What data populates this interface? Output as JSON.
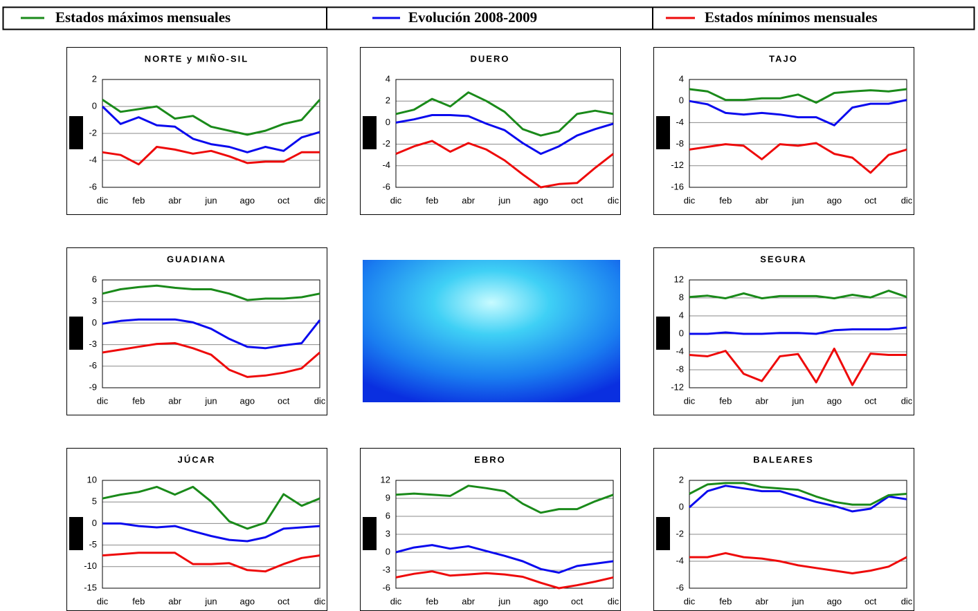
{
  "legend": [
    {
      "name": "Estados máximos mensuales",
      "color": "#1a8a1a"
    },
    {
      "name": "Evolución 2008-2009",
      "color": "#0a0aee"
    },
    {
      "name": "Estados mínimos mensuales",
      "color": "#ee0a0a"
    }
  ],
  "chart_data": [
    {
      "type": "line",
      "title": "NORTE y MIÑO-SIL",
      "categories": [
        "dic",
        null,
        "feb",
        null,
        "abr",
        null,
        "jun",
        null,
        "ago",
        null,
        "oct",
        null,
        "dic"
      ],
      "ylim": [
        -6,
        2
      ],
      "yticks": [
        -6,
        -4,
        -2,
        0,
        2
      ],
      "grid": true,
      "series": [
        {
          "values": [
            0.5,
            -0.4,
            -0.2,
            0,
            -0.9,
            -0.7,
            -1.5,
            -1.8,
            -2.1,
            -1.8,
            -1.3,
            -1.0,
            0.5
          ]
        },
        {
          "values": [
            0,
            -1.3,
            -0.8,
            -1.4,
            -1.5,
            -2.4,
            -2.8,
            -3.0,
            -3.4,
            -3.0,
            -3.3,
            -2.3,
            -1.9
          ]
        },
        {
          "values": [
            -3.4,
            -3.6,
            -4.3,
            -3.0,
            -3.2,
            -3.5,
            -3.3,
            -3.7,
            -4.2,
            -4.1,
            -4.1,
            -3.4,
            -3.4
          ]
        }
      ]
    },
    {
      "type": "line",
      "title": "DUERO",
      "categories": [
        "dic",
        null,
        "feb",
        null,
        "abr",
        null,
        "jun",
        null,
        "ago",
        null,
        "oct",
        null,
        "dic"
      ],
      "ylim": [
        -6,
        4
      ],
      "yticks": [
        -6,
        -4,
        -2,
        0,
        2,
        4
      ],
      "grid": true,
      "series": [
        {
          "values": [
            0.8,
            1.2,
            2.2,
            1.5,
            2.8,
            2.0,
            1.0,
            -0.6,
            -1.2,
            -0.8,
            0.8,
            1.1,
            0.8
          ]
        },
        {
          "values": [
            0,
            0.3,
            0.7,
            0.7,
            0.6,
            -0.1,
            -0.7,
            -1.9,
            -2.9,
            -2.2,
            -1.2,
            -0.6,
            -0.1
          ]
        },
        {
          "values": [
            -2.9,
            -2.2,
            -1.7,
            -2.7,
            -1.9,
            -2.5,
            -3.5,
            -4.8,
            -6.0,
            -5.7,
            -5.6,
            -4.2,
            -2.9
          ]
        }
      ]
    },
    {
      "type": "line",
      "title": "TAJO",
      "categories": [
        "dic",
        null,
        "feb",
        null,
        "abr",
        null,
        "jun",
        null,
        "ago",
        null,
        "oct",
        null,
        "dic"
      ],
      "ylim": [
        -16,
        4
      ],
      "yticks": [
        -16,
        -12,
        -8,
        -4,
        0,
        4
      ],
      "grid": true,
      "series": [
        {
          "values": [
            2.2,
            1.8,
            0.2,
            0.2,
            0.5,
            0.5,
            1.2,
            -0.3,
            1.5,
            1.8,
            2.0,
            1.8,
            2.2
          ]
        },
        {
          "values": [
            0,
            -0.6,
            -2.2,
            -2.5,
            -2.2,
            -2.5,
            -3.0,
            -3.0,
            -4.5,
            -1.2,
            -0.5,
            -0.5,
            0.2
          ]
        },
        {
          "values": [
            -9,
            -8.5,
            -8,
            -8.3,
            -10.8,
            -8,
            -8.3,
            -7.8,
            -9.8,
            -10.5,
            -13.3,
            -10,
            -9
          ]
        }
      ]
    },
    {
      "type": "line",
      "title": "GUADIANA",
      "categories": [
        "dic",
        null,
        "feb",
        null,
        "abr",
        null,
        "jun",
        null,
        "ago",
        null,
        "oct",
        null,
        "dic"
      ],
      "ylim": [
        -9,
        6
      ],
      "yticks": [
        -9,
        -6,
        -3,
        0,
        3,
        6
      ],
      "grid": true,
      "series": [
        {
          "values": [
            4.1,
            4.7,
            5.0,
            5.2,
            4.9,
            4.7,
            4.7,
            4.1,
            3.2,
            3.4,
            3.4,
            3.6,
            4.1
          ]
        },
        {
          "values": [
            -0.1,
            0.3,
            0.5,
            0.5,
            0.5,
            0.1,
            -0.8,
            -2.2,
            -3.3,
            -3.5,
            -3.1,
            -2.8,
            0.4
          ]
        },
        {
          "values": [
            -4.1,
            -3.7,
            -3.3,
            -2.9,
            -2.8,
            -3.5,
            -4.4,
            -6.5,
            -7.5,
            -7.3,
            -6.9,
            -6.3,
            -4.1
          ]
        }
      ]
    },
    {
      "type": "line",
      "title": "SEGURA",
      "categories": [
        "dic",
        null,
        "feb",
        null,
        "abr",
        null,
        "jun",
        null,
        "ago",
        null,
        "oct",
        null,
        "dic"
      ],
      "ylim": [
        -12,
        12
      ],
      "yticks": [
        -12,
        -8,
        -4,
        0,
        4,
        8,
        12
      ],
      "grid": true,
      "series": [
        {
          "values": [
            8.2,
            8.5,
            7.9,
            9.0,
            7.9,
            8.4,
            8.4,
            8.4,
            7.9,
            8.7,
            8.1,
            9.6,
            8.2
          ]
        },
        {
          "values": [
            0,
            0,
            0.3,
            0,
            0,
            0.2,
            0.2,
            0,
            0.8,
            1.0,
            1.0,
            1.0,
            1.4
          ]
        },
        {
          "values": [
            -4.7,
            -5.0,
            -3.8,
            -8.9,
            -10.5,
            -5.0,
            -4.5,
            -10.8,
            -3.3,
            -11.4,
            -4.4,
            -4.7,
            -4.7
          ]
        }
      ]
    },
    {
      "type": "line",
      "title": "JÚCAR",
      "categories": [
        "dic",
        null,
        "feb",
        null,
        "abr",
        null,
        "jun",
        null,
        "ago",
        null,
        "oct",
        null,
        "dic"
      ],
      "ylim": [
        -15,
        10
      ],
      "yticks": [
        -15,
        -10,
        -5,
        0,
        5,
        10
      ],
      "grid": true,
      "series": [
        {
          "values": [
            5.8,
            6.7,
            7.3,
            8.5,
            6.7,
            8.5,
            5.1,
            0.5,
            -1.2,
            0.2,
            6.8,
            4.1,
            5.8
          ]
        },
        {
          "values": [
            0,
            0,
            -0.6,
            -0.9,
            -0.6,
            -1.8,
            -2.9,
            -3.8,
            -4.1,
            -3.2,
            -1.2,
            -0.9,
            -0.6
          ]
        },
        {
          "values": [
            -7.4,
            -7.1,
            -6.8,
            -6.8,
            -6.8,
            -9.4,
            -9.4,
            -9.2,
            -10.8,
            -11.1,
            -9.4,
            -8.0,
            -7.4
          ]
        }
      ]
    },
    {
      "type": "line",
      "title": "EBRO",
      "categories": [
        "dic",
        null,
        "feb",
        null,
        "abr",
        null,
        "jun",
        null,
        "ago",
        null,
        "oct",
        null,
        "dic"
      ],
      "ylim": [
        -6,
        12
      ],
      "yticks": [
        -6,
        -3,
        0,
        3,
        6,
        9,
        12
      ],
      "grid": true,
      "series": [
        {
          "values": [
            9.6,
            9.8,
            9.6,
            9.4,
            11.1,
            10.7,
            10.2,
            8.1,
            6.6,
            7.2,
            7.2,
            8.5,
            9.6
          ]
        },
        {
          "values": [
            0,
            0.8,
            1.2,
            0.6,
            1.0,
            0.2,
            -0.6,
            -1.5,
            -2.8,
            -3.4,
            -2.3,
            -1.9,
            -1.5
          ]
        },
        {
          "values": [
            -4.2,
            -3.6,
            -3.2,
            -3.9,
            -3.7,
            -3.5,
            -3.7,
            -4.1,
            -5.1,
            -6.0,
            -5.5,
            -4.9,
            -4.2
          ]
        }
      ]
    },
    {
      "type": "line",
      "title": "BALEARES",
      "categories": [
        "dic",
        null,
        "feb",
        null,
        "abr",
        null,
        "jun",
        null,
        "ago",
        null,
        "oct",
        null,
        "dic"
      ],
      "ylim": [
        -6,
        2
      ],
      "yticks": [
        -6,
        -4,
        -2,
        0,
        2
      ],
      "grid": true,
      "series": [
        {
          "values": [
            1.0,
            1.7,
            1.8,
            1.8,
            1.5,
            1.4,
            1.3,
            0.8,
            0.4,
            0.2,
            0.2,
            0.9,
            1.0
          ]
        },
        {
          "values": [
            0,
            1.2,
            1.6,
            1.4,
            1.2,
            1.2,
            0.8,
            0.4,
            0.1,
            -0.3,
            -0.1,
            0.8,
            0.6
          ]
        },
        {
          "values": [
            -3.7,
            -3.7,
            -3.4,
            -3.7,
            -3.8,
            -4.0,
            -4.3,
            -4.5,
            -4.7,
            -4.9,
            -4.7,
            -4.4,
            -3.7
          ]
        }
      ]
    }
  ]
}
